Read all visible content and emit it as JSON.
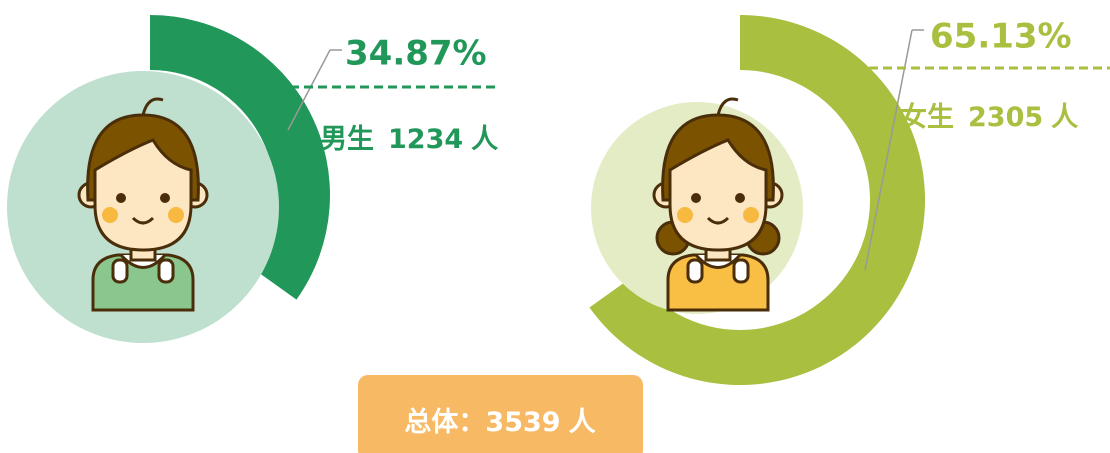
{
  "chart_data": [
    {
      "type": "gauge",
      "values": [
        34.87
      ],
      "value_labels": [
        "34.87%"
      ],
      "name": "男生",
      "count": 1234,
      "unit": "人",
      "color": "#22975a",
      "light": "#bfe0cf",
      "shirt": "#8ac68e"
    },
    {
      "type": "gauge",
      "values": [
        65.13
      ],
      "value_labels": [
        "65.13%"
      ],
      "name": "女生",
      "count": 2305,
      "unit": "人",
      "color": "#a8bf3f",
      "light": "#e4ecc6",
      "shirt": "#f9bf45"
    }
  ],
  "total": {
    "label": "总体：",
    "value": 3539,
    "unit": "人"
  }
}
